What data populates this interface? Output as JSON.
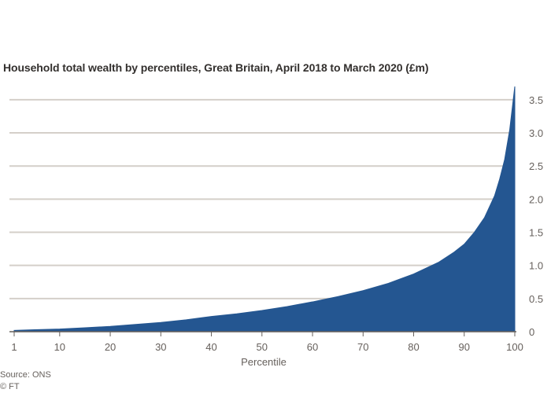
{
  "title": "Household total wealth by percentiles, Great Britain, April 2018 to March 2020 (£m)",
  "source": "Source: ONS",
  "credit": "© FT",
  "chart_data": {
    "type": "area",
    "title": "Household total wealth by percentiles, Great Britain, April 2018 to March 2020 (£m)",
    "xlabel": "Percentile",
    "ylabel": "",
    "xlim": [
      1,
      100
    ],
    "ylim": [
      0,
      3.7
    ],
    "x_ticks": [
      1,
      10,
      20,
      30,
      40,
      50,
      60,
      70,
      80,
      90,
      100
    ],
    "y_ticks": [
      0,
      0.5,
      1.0,
      1.5,
      2.0,
      2.5,
      3.0,
      3.5
    ],
    "y_tick_labels": [
      "0",
      "0.5",
      "1.0",
      "1.5",
      "2.0",
      "2.5",
      "3.0",
      "3.5"
    ],
    "y_axis_position": "right",
    "grid": "horizontal",
    "color": "#245691",
    "x": [
      1,
      5,
      10,
      15,
      20,
      25,
      30,
      35,
      40,
      45,
      50,
      55,
      60,
      65,
      70,
      75,
      80,
      85,
      88,
      90,
      92,
      94,
      96,
      97,
      98,
      99,
      100
    ],
    "y": [
      0.02,
      0.03,
      0.04,
      0.06,
      0.08,
      0.11,
      0.14,
      0.18,
      0.23,
      0.27,
      0.32,
      0.38,
      0.45,
      0.53,
      0.62,
      0.73,
      0.87,
      1.05,
      1.2,
      1.32,
      1.5,
      1.72,
      2.05,
      2.3,
      2.6,
      3.05,
      3.7
    ]
  }
}
